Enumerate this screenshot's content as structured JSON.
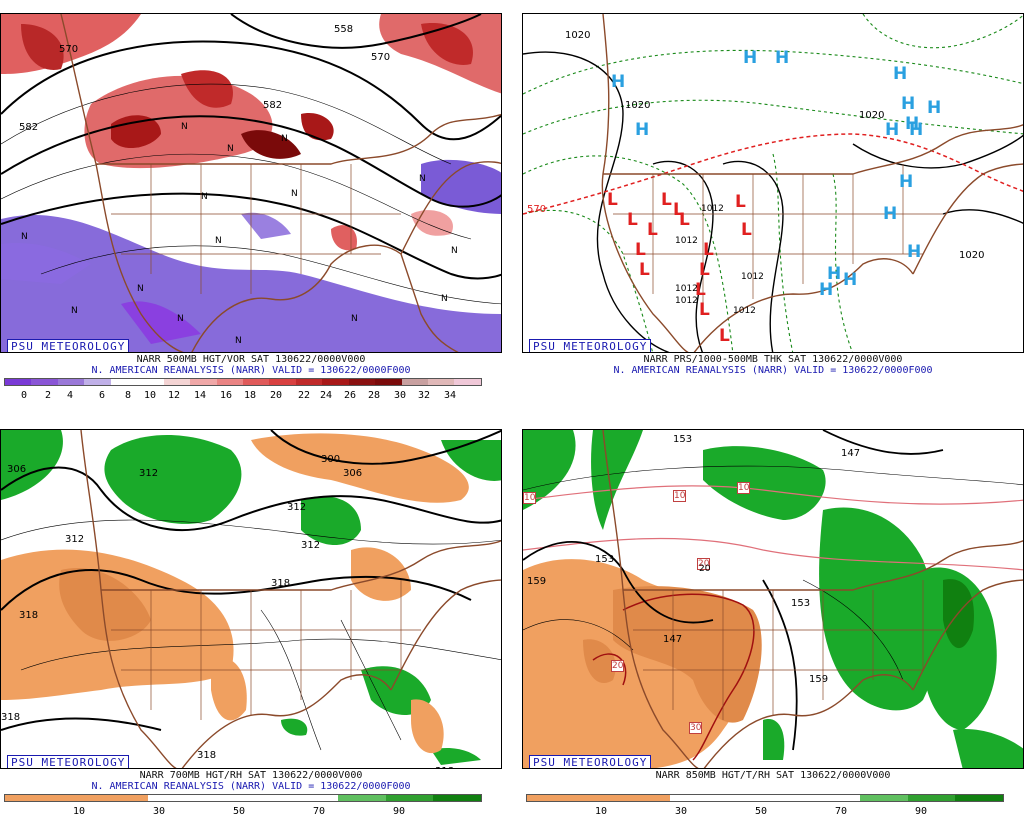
{
  "branding": "PSU METEOROLOGY",
  "colors": {
    "coast": "#8b4a2b",
    "contour": "#000000",
    "vort_neg": "#7a5bd6",
    "vort_pos": "#e0404a",
    "dry": "#f0a060",
    "moist": "#1aaa2a",
    "h_label": "#2aa0e0",
    "l_label": "#e02020",
    "link_blue": "#1a1ab0"
  },
  "panels": [
    {
      "id": "500mb",
      "title_line1": "NARR 500MB HGT/VOR SAT 130622/0000V000",
      "title_line2": "N. AMERICAN REANALYSIS (NARR) VALID = 130622/0000F000",
      "colorbar_ticks": [
        "0",
        "2",
        "4",
        "6",
        "8",
        "10",
        "12",
        "14",
        "16",
        "18",
        "20",
        "22",
        "24",
        "26",
        "28",
        "30",
        "32",
        "34"
      ],
      "colorbar_colors": [
        "#7a3ad6",
        "#8a55d6",
        "#9a78d8",
        "#c0b0e8",
        "#ffffff",
        "#ffffff",
        "#f4d4d4",
        "#f0a8a8",
        "#ea8484",
        "#e05a5a",
        "#d84040",
        "#c02a2a",
        "#a81818",
        "#8a1010",
        "#7a0a0a",
        "#c8a0a0",
        "#e0b8b8",
        "#f0c8d8"
      ],
      "labels": [
        "570",
        "582",
        "558",
        "570",
        "582",
        "N",
        "N",
        "N",
        "N",
        "N",
        "N",
        "N",
        "N",
        "N",
        "N",
        "N",
        "N",
        "N",
        "N",
        "N"
      ]
    },
    {
      "id": "sfc",
      "title_line1": "NARR PRS/1000-500MB THK SAT 130622/0000V000",
      "title_line2": "N. AMERICAN REANALYSIS (NARR) VALID = 130622/0000F000",
      "labels": [
        "1020",
        "1020",
        "1020",
        "1020",
        "570",
        "1012",
        "1012",
        "1012",
        "1012",
        "1012",
        "1012"
      ],
      "highs": [
        "H",
        "H",
        "H",
        "H",
        "H",
        "H",
        "H",
        "H",
        "H",
        "H",
        "H",
        "H",
        "H",
        "H",
        "H",
        "H"
      ],
      "lows": [
        "L",
        "L",
        "L",
        "L",
        "L",
        "L",
        "L",
        "L",
        "L",
        "L",
        "L",
        "L",
        "L",
        "L",
        "L"
      ]
    },
    {
      "id": "700mb",
      "title_line1": "NARR 700MB HGT/RH SAT 130622/0000V000",
      "title_line2": "N. AMERICAN REANALYSIS (NARR) VALID = 130622/0000F000",
      "colorbar_ticks": [
        "10",
        "30",
        "50",
        "70",
        "90"
      ],
      "colorbar_colors": [
        "#f0a060",
        "#f0a060",
        "#f0a060",
        "#ffffff",
        "#ffffff",
        "#ffffff",
        "#ffffff",
        "#60c060",
        "#30a030",
        "#108010"
      ],
      "labels": [
        "306",
        "312",
        "300",
        "306",
        "312",
        "312",
        "318",
        "318",
        "318",
        "318",
        "318",
        "312"
      ]
    },
    {
      "id": "850mb",
      "title_line1": "NARR 850MB HGT/T/RH SAT 130622/0000V000",
      "title_line2": "",
      "colorbar_ticks": [
        "10",
        "30",
        "50",
        "70",
        "90"
      ],
      "colorbar_colors": [
        "#f0a060",
        "#f0a060",
        "#f0a060",
        "#ffffff",
        "#ffffff",
        "#ffffff",
        "#ffffff",
        "#60c060",
        "#30a030",
        "#108010"
      ],
      "labels": [
        "153",
        "147",
        "10",
        "10",
        "10",
        "159",
        "153",
        "20",
        "20",
        "147",
        "153",
        "159",
        "30",
        "20"
      ]
    }
  ]
}
